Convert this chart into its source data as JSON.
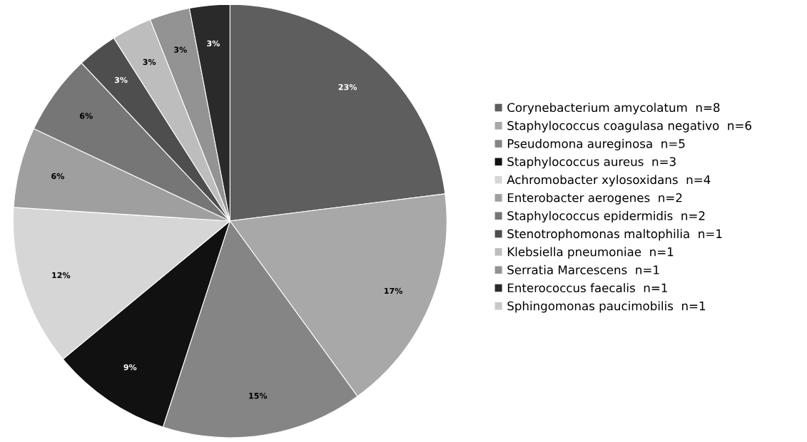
{
  "chart_data": {
    "type": "pie",
    "categories": [
      "Corynebacterium amycolatum  n=8",
      "Staphylococcus coagulasa negativo  n=6",
      "Pseudomona aureginosa  n=5",
      "Staphylococcus aureus  n=3",
      "Achromobacter xylosoxidans  n=4",
      "Enterobacter aerogenes  n=2",
      "Staphylococcus epidermidis  n=2",
      "Stenotrophomonas maltophilia  n=1",
      "Klebsiella pneumoniae  n=1",
      "Serratia Marcescens  n=1",
      "Enterococcus faecalis  n=1",
      "Sphingomonas paucimobilis  n=1"
    ],
    "values": [
      23,
      17,
      15,
      9,
      12,
      6,
      6,
      3,
      3,
      3,
      3,
      null
    ],
    "value_labels": [
      "23%",
      "17%",
      "15%",
      "9%",
      "12%",
      "6%",
      "6%",
      "3%",
      "3%",
      "3%",
      "3%",
      null
    ],
    "colors": [
      "#5e5e5e",
      "#a8a8a8",
      "#858585",
      "#111111",
      "#d6d6d6",
      "#9f9f9f",
      "#767676",
      "#4e4e4e",
      "#bdbdbd",
      "#939393",
      "#2a2a2a",
      "#c8c8c8"
    ],
    "legend": "right"
  }
}
